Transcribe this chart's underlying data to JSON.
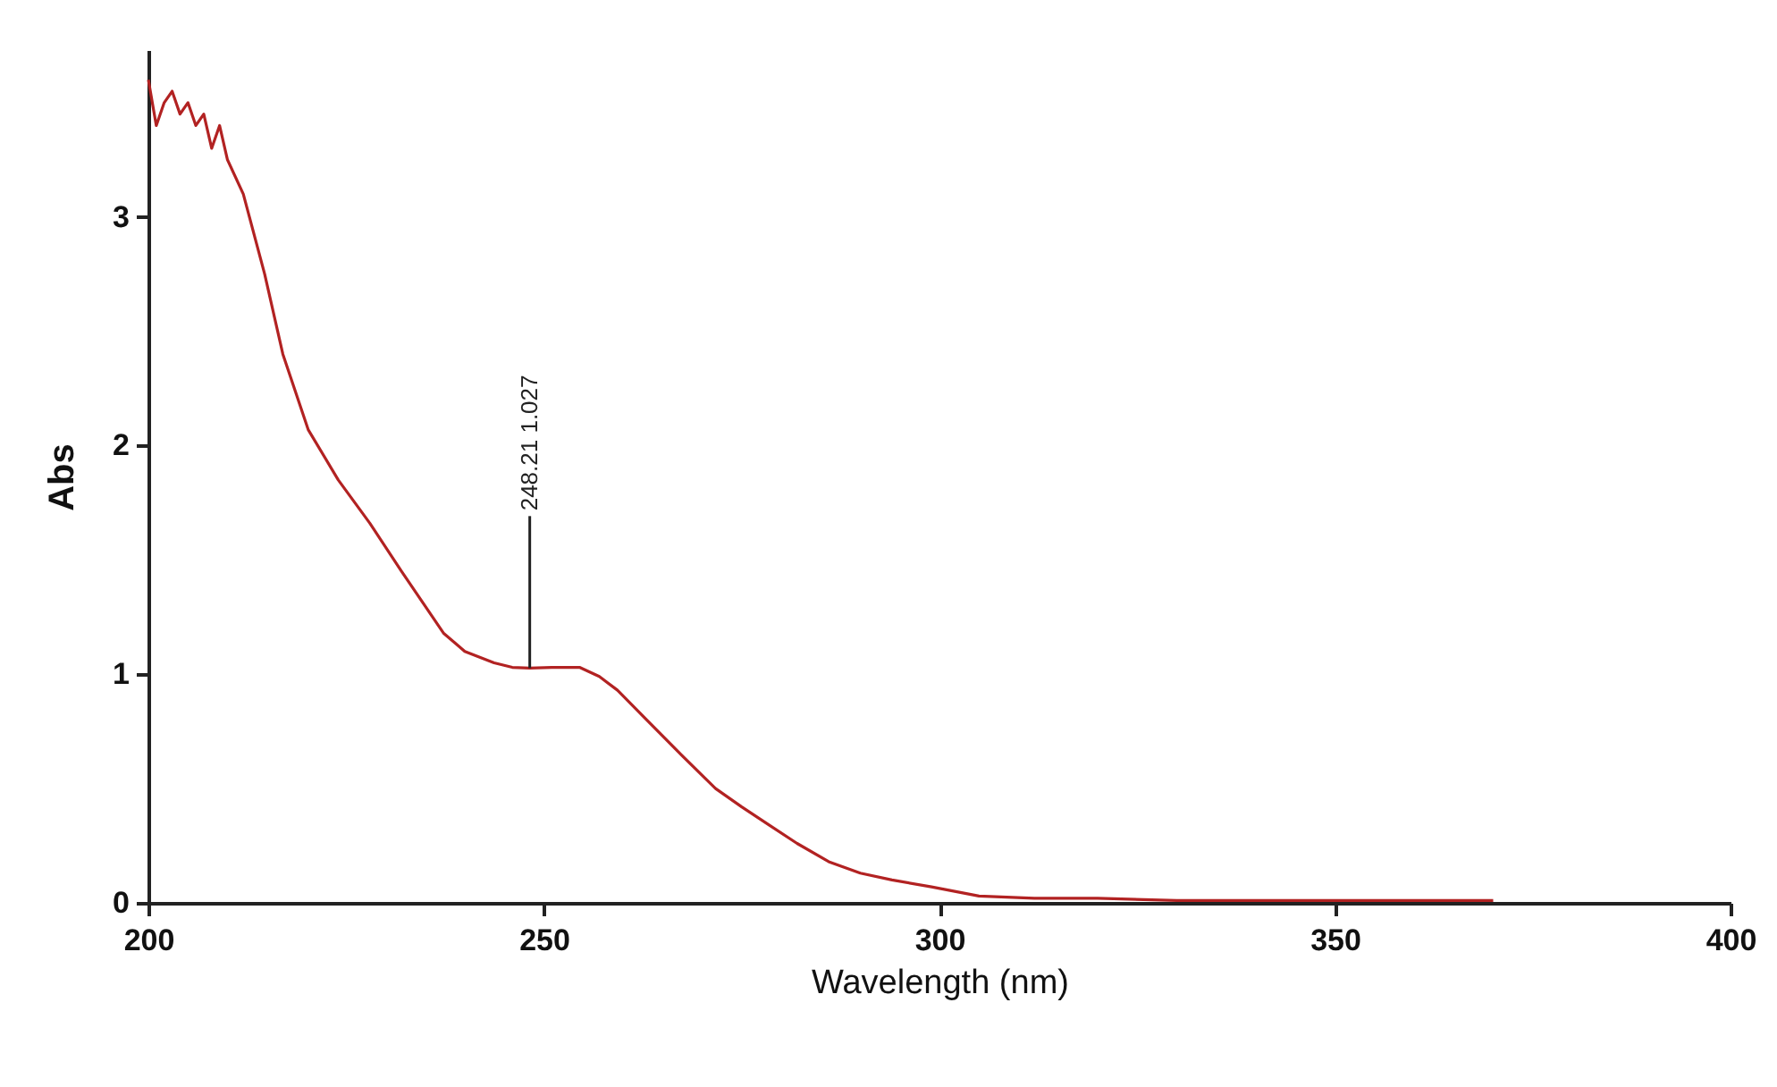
{
  "chart_data": {
    "type": "line",
    "xlabel": "Wavelength (nm)",
    "ylabel": "Abs",
    "x": [
      200,
      201,
      202,
      203,
      204,
      205,
      206,
      207,
      208,
      209,
      210,
      212,
      214.7,
      217,
      220.2,
      224,
      228,
      232,
      237.3,
      240,
      243.7,
      246,
      248.21,
      251,
      254.5,
      257,
      259.3,
      263,
      267,
      271.7,
      275,
      278.5,
      282,
      286,
      290,
      294,
      299,
      305,
      312,
      320,
      330,
      340,
      350,
      360,
      370
    ],
    "series": [
      {
        "color": "#b22222",
        "values": [
          3.6,
          3.4,
          3.5,
          3.55,
          3.45,
          3.5,
          3.4,
          3.45,
          3.3,
          3.4,
          3.25,
          3.1,
          2.75,
          2.4,
          2.07,
          1.85,
          1.66,
          1.45,
          1.18,
          1.1,
          1.05,
          1.03,
          1.027,
          1.03,
          1.03,
          0.99,
          0.93,
          0.8,
          0.66,
          0.5,
          0.42,
          0.34,
          0.26,
          0.18,
          0.13,
          0.1,
          0.07,
          0.03,
          0.02,
          0.02,
          0.01,
          0.01,
          0.01,
          0.01,
          0.01
        ]
      }
    ],
    "xlim": [
      200,
      400
    ],
    "xticks": [
      200,
      250,
      300,
      350,
      400
    ],
    "ylim": [
      0,
      3.73
    ],
    "yticks": [
      0,
      1,
      2,
      3
    ],
    "grid": false,
    "line_style": "solid",
    "marker": "none",
    "annotations": [
      {
        "text": "248.21  1.027",
        "x": 248.21,
        "y": 1.027
      }
    ]
  }
}
